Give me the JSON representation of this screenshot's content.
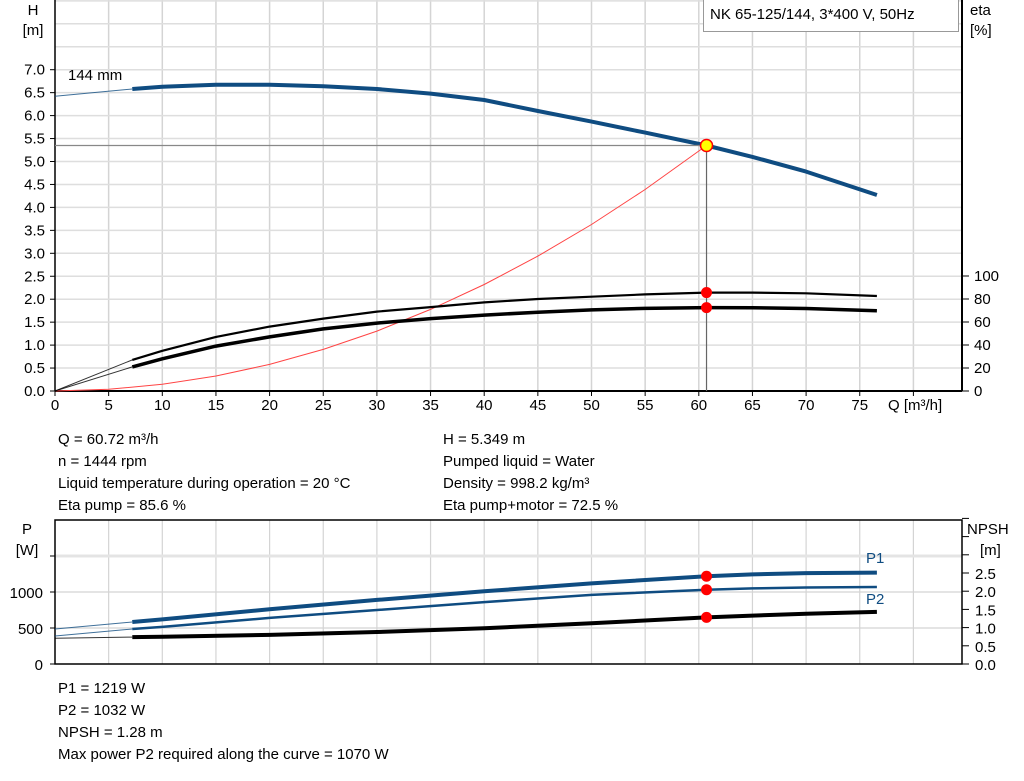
{
  "title": "NK 65-125/144, 3*400 V, 50Hz",
  "colors": {
    "curve_blue": "#0f4c81",
    "duty_point": "#ff0000",
    "duty_fill": "#ffff00",
    "system_curve": "#ff4444",
    "grid": "#dcdcdc"
  },
  "chart_data": [
    {
      "type": "line",
      "xlabel": "Q [m³/h]",
      "ylabel": "H\n[m]",
      "ylabel_lines": [
        "H",
        "[m]"
      ],
      "y2label_lines": [
        "eta",
        "[%]"
      ],
      "xlim": [
        0,
        84.5
      ],
      "ylim": [
        0,
        8.5
      ],
      "y2lim": [
        0,
        100
      ],
      "grid": true,
      "x_ticks": [
        0,
        5,
        10,
        15,
        20,
        25,
        30,
        35,
        40,
        45,
        50,
        55,
        60,
        65,
        70,
        75
      ],
      "y_ticks": [
        "0.0",
        "0.5",
        "1.0",
        "1.5",
        "2.0",
        "2.5",
        "3.0",
        "3.5",
        "4.0",
        "4.5",
        "5.0",
        "5.5",
        "6.0",
        "6.5",
        "7.0"
      ],
      "y2_ticks": [
        "0",
        "20",
        "40",
        "60",
        "80",
        "100"
      ],
      "annotation": "144 mm",
      "series": [
        {
          "role": "head",
          "axis": "left",
          "color": "#0f4c81",
          "x": [
            0,
            7.2,
            10,
            15,
            20,
            25,
            30,
            35,
            40,
            45,
            50,
            55,
            60.72,
            65,
            70,
            76.6
          ],
          "y": [
            6.42,
            6.58,
            6.63,
            6.67,
            6.67,
            6.64,
            6.58,
            6.48,
            6.34,
            6.1,
            5.87,
            5.63,
            5.349,
            5.1,
            4.78,
            4.27
          ]
        },
        {
          "role": "eta-pump",
          "axis": "right",
          "color": "#000000",
          "x": [
            0,
            7.2,
            10,
            15,
            20,
            25,
            30,
            35,
            40,
            45,
            50,
            55,
            60.72,
            65,
            70,
            76.6
          ],
          "y": [
            0,
            27,
            35,
            47,
            56,
            63,
            69,
            73,
            77,
            80,
            82,
            84,
            85.6,
            85.6,
            85,
            82.6
          ]
        },
        {
          "role": "eta-pump-motor",
          "axis": "right",
          "color": "#000000",
          "x": [
            0,
            7.2,
            10,
            15,
            20,
            25,
            30,
            35,
            40,
            45,
            50,
            55,
            60.72,
            65,
            70,
            76.6
          ],
          "y": [
            0,
            21,
            28,
            39,
            47,
            54,
            59,
            63,
            66,
            68.5,
            70.5,
            71.8,
            72.5,
            72.4,
            71.7,
            69.8
          ]
        },
        {
          "role": "system-curve",
          "axis": "left",
          "color": "#ff4444",
          "x": [
            0,
            5,
            10,
            15,
            20,
            25,
            30,
            35,
            40,
            45,
            50,
            55,
            60.72
          ],
          "y": [
            0,
            0.036,
            0.145,
            0.326,
            0.58,
            0.907,
            1.306,
            1.777,
            2.321,
            2.938,
            3.627,
            4.389,
            5.349
          ]
        }
      ],
      "duty_point": {
        "Q": 60.72,
        "H": 5.349,
        "eta_pump": 85.6,
        "eta_pump_motor": 72.5
      }
    },
    {
      "type": "line",
      "ylabel_lines": [
        "P",
        "[W]"
      ],
      "y2label_lines": [
        "NPSH",
        "[m]"
      ],
      "xlim": [
        0,
        84.5
      ],
      "ylim": [
        0,
        2000
      ],
      "y2lim": [
        0,
        4
      ],
      "grid": true,
      "y_ticks": [
        "0",
        "500",
        "1000"
      ],
      "y2_ticks": [
        "0.0",
        "0.5",
        "1.0",
        "1.5",
        "2.0",
        "2.5"
      ],
      "series": [
        {
          "name": "P1",
          "axis": "left",
          "color": "#0f4c81",
          "x": [
            0,
            7.2,
            10,
            20,
            30,
            40,
            50,
            60.72,
            65,
            70,
            76.6
          ],
          "y": [
            486,
            583,
            620,
            760,
            890,
            1010,
            1120,
            1219,
            1245,
            1262,
            1270
          ]
        },
        {
          "name": "P2",
          "axis": "left",
          "color": "#0f4c81",
          "x": [
            0,
            7.2,
            10,
            20,
            30,
            40,
            50,
            60.72,
            65,
            70,
            76.6
          ],
          "y": [
            389,
            486,
            515,
            640,
            750,
            860,
            960,
            1032,
            1050,
            1062,
            1070
          ]
        },
        {
          "role": "npsh",
          "axis": "right",
          "color": "#000000",
          "x": [
            0,
            7.2,
            10,
            20,
            30,
            40,
            50,
            60.72,
            65,
            70,
            76.6
          ],
          "y": [
            0.71,
            0.74,
            0.75,
            0.8,
            0.88,
            0.98,
            1.12,
            1.28,
            1.33,
            1.38,
            1.43
          ]
        }
      ],
      "duty_point": {
        "Q": 60.72,
        "P1": 1219,
        "P2": 1032,
        "NPSH": 1.28
      }
    }
  ],
  "info_top": {
    "left": [
      "Q = 60.72 m³/h",
      "n = 1444 rpm",
      "Liquid temperature during operation = 20 °C",
      "Eta pump = 85.6 %"
    ],
    "right": [
      "H = 5.349 m",
      "Pumped liquid = Water",
      "Density = 998.2 kg/m³",
      "Eta pump+motor = 72.5 %"
    ]
  },
  "info_bottom": [
    "P1 = 1219 W",
    "P2 = 1032 W",
    "NPSH = 1.28 m",
    "Max power P2 required along the curve = 1070 W"
  ]
}
